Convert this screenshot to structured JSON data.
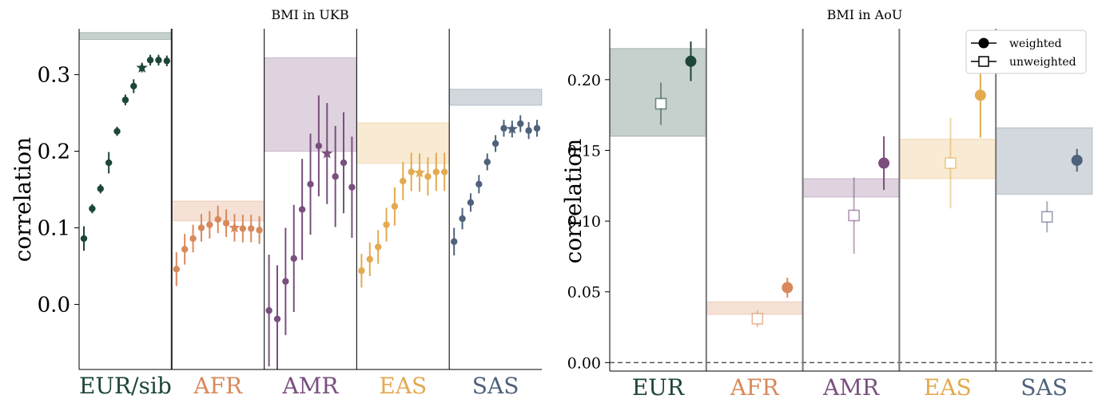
{
  "chart_data": [
    {
      "type": "scatter",
      "title": "BMI in UKB",
      "xlabel": "",
      "ylabel": "correlation",
      "ylim": [
        -0.085,
        0.36
      ],
      "yticks": [
        0.0,
        0.1,
        0.2,
        0.3
      ],
      "ytick_labels": [
        "0.0",
        "0.1",
        "0.2",
        "0.3"
      ],
      "grid": false,
      "groups": [
        {
          "label": "EUR/sib",
          "color": "#1c4638",
          "band": [
            0.346,
            0.355
          ],
          "points": [
            [
              0.086,
              0.016
            ],
            [
              0.125,
              0.006
            ],
            [
              0.151,
              0.006
            ],
            [
              0.185,
              0.014
            ],
            [
              0.226,
              0.006
            ],
            [
              0.267,
              0.007
            ],
            [
              0.285,
              0.009
            ],
            [
              0.309,
              0.006,
              "star"
            ],
            [
              0.319,
              0.007
            ],
            [
              0.319,
              0.007
            ],
            [
              0.318,
              0.007
            ]
          ]
        },
        {
          "label": "AFR",
          "color": "#d9895b",
          "band": [
            0.109,
            0.135
          ],
          "points": [
            [
              0.046,
              0.022
            ],
            [
              0.072,
              0.02
            ],
            [
              0.086,
              0.018
            ],
            [
              0.1,
              0.018
            ],
            [
              0.104,
              0.018
            ],
            [
              0.111,
              0.018
            ],
            [
              0.106,
              0.018
            ],
            [
              0.1,
              0.018,
              "star"
            ],
            [
              0.099,
              0.018
            ],
            [
              0.099,
              0.018
            ],
            [
              0.097,
              0.018
            ]
          ]
        },
        {
          "label": "AMR",
          "color": "#7a4f7e",
          "band": [
            0.2,
            0.322
          ],
          "points": [
            [
              -0.008,
              0.073
            ],
            [
              -0.019,
              0.07
            ],
            [
              0.03,
              0.07
            ],
            [
              0.06,
              0.07
            ],
            [
              0.124,
              0.066
            ],
            [
              0.157,
              0.066
            ],
            [
              0.207,
              0.066
            ],
            [
              0.197,
              0.066,
              "star"
            ],
            [
              0.167,
              0.066
            ],
            [
              0.185,
              0.066
            ],
            [
              0.153,
              0.066
            ]
          ]
        },
        {
          "label": "EAS",
          "color": "#e3aa4f",
          "band": [
            0.184,
            0.237
          ],
          "points": [
            [
              0.044,
              0.022
            ],
            [
              0.059,
              0.022
            ],
            [
              0.075,
              0.022
            ],
            [
              0.104,
              0.022
            ],
            [
              0.128,
              0.025
            ],
            [
              0.161,
              0.025
            ],
            [
              0.173,
              0.025
            ],
            [
              0.172,
              0.025,
              "star"
            ],
            [
              0.167,
              0.025
            ],
            [
              0.173,
              0.025
            ],
            [
              0.173,
              0.025
            ]
          ]
        },
        {
          "label": "SAS",
          "color": "#4f627c",
          "band": [
            0.26,
            0.281
          ],
          "points": [
            [
              0.082,
              0.018
            ],
            [
              0.112,
              0.014
            ],
            [
              0.133,
              0.012
            ],
            [
              0.157,
              0.012
            ],
            [
              0.186,
              0.011
            ],
            [
              0.21,
              0.011
            ],
            [
              0.23,
              0.011
            ],
            [
              0.229,
              0.011,
              "star"
            ],
            [
              0.236,
              0.011
            ],
            [
              0.227,
              0.011
            ],
            [
              0.23,
              0.011
            ]
          ]
        }
      ]
    },
    {
      "type": "scatter",
      "title": "BMI in AoU",
      "xlabel": "",
      "ylabel": "correlation",
      "ylim": [
        -0.006,
        0.236
      ],
      "yticks": [
        0.0,
        0.05,
        0.1,
        0.15,
        0.2
      ],
      "ytick_labels": [
        "0.00",
        "0.05",
        "0.10",
        "0.15",
        "0.20"
      ],
      "grid": false,
      "reference_line": 0.0,
      "legend": {
        "position": "top-right",
        "entries": [
          {
            "label": "weighted",
            "marker": "filled-circle"
          },
          {
            "label": "unweighted",
            "marker": "open-square"
          }
        ]
      },
      "groups": [
        {
          "label": "EUR",
          "color": "#1c4638",
          "band": [
            0.16,
            0.222
          ],
          "weighted": [
            0.213,
            0.014
          ],
          "unweighted": [
            0.183,
            0.015
          ]
        },
        {
          "label": "AFR",
          "color": "#d9895b",
          "band": [
            0.034,
            0.043
          ],
          "weighted": [
            0.053,
            0.007
          ],
          "unweighted": [
            0.031,
            0.006
          ]
        },
        {
          "label": "AMR",
          "color": "#7a4f7e",
          "band": [
            0.117,
            0.13
          ],
          "weighted": [
            0.141,
            0.019
          ],
          "unweighted": [
            0.104,
            0.027
          ]
        },
        {
          "label": "EAS",
          "color": "#e3aa4f",
          "band": [
            0.13,
            0.158
          ],
          "weighted": [
            0.189,
            0.03
          ],
          "unweighted": [
            0.141,
            0.032
          ]
        },
        {
          "label": "SAS",
          "color": "#4f627c",
          "band": [
            0.119,
            0.166
          ],
          "weighted": [
            0.143,
            0.008
          ],
          "unweighted": [
            0.103,
            0.011
          ]
        }
      ]
    }
  ]
}
